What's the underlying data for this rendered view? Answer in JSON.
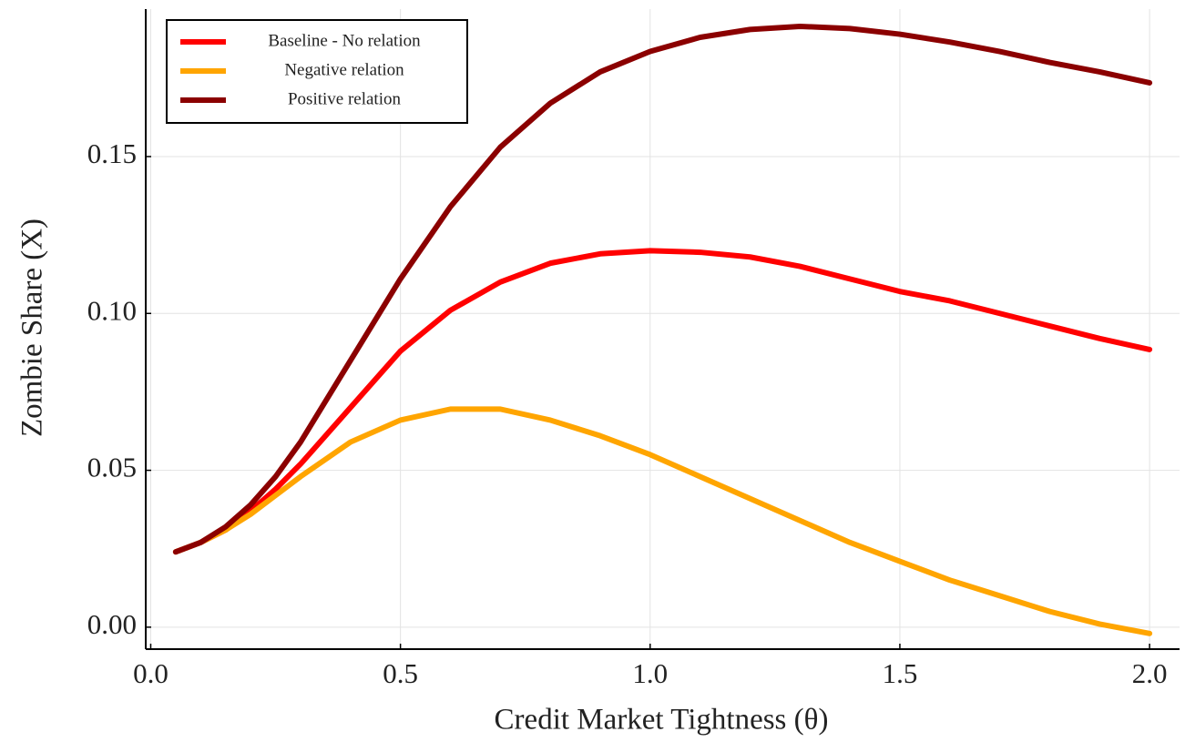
{
  "chart_data": {
    "type": "line",
    "x_label": "Credit Market Tightness (θ)",
    "y_label": "Zombie Share (X)",
    "x": [
      0.05,
      0.1,
      0.15,
      0.2,
      0.25,
      0.3,
      0.4,
      0.5,
      0.6,
      0.7,
      0.8,
      0.9,
      1.0,
      1.1,
      1.2,
      1.3,
      1.4,
      1.5,
      1.6,
      1.7,
      1.8,
      1.9,
      2.0
    ],
    "series": [
      {
        "name": "Baseline - No relation",
        "color": "#ff0000",
        "values": [
          0.024,
          0.027,
          0.031,
          0.037,
          0.044,
          0.052,
          0.07,
          0.088,
          0.101,
          0.11,
          0.116,
          0.119,
          0.12,
          0.1195,
          0.118,
          0.115,
          0.111,
          0.107,
          0.104,
          0.1,
          0.096,
          0.092,
          0.0885
        ]
      },
      {
        "name": "Negative relation",
        "color": "#ffa500",
        "values": [
          0.024,
          0.027,
          0.031,
          0.036,
          0.042,
          0.048,
          0.059,
          0.066,
          0.0695,
          0.0695,
          0.066,
          0.061,
          0.055,
          0.048,
          0.041,
          0.034,
          0.027,
          0.021,
          0.015,
          0.01,
          0.005,
          0.001,
          -0.002
        ]
      },
      {
        "name": "Positive relation",
        "color": "#8b0000",
        "values": [
          0.024,
          0.027,
          0.032,
          0.039,
          0.048,
          0.059,
          0.085,
          0.111,
          0.134,
          0.153,
          0.167,
          0.177,
          0.1835,
          0.188,
          0.1905,
          0.1915,
          0.1908,
          0.189,
          0.1865,
          0.1835,
          0.18,
          0.177,
          0.1735
        ]
      }
    ],
    "xlim": [
      -0.01,
      2.06
    ],
    "ylim": [
      -0.007,
      0.197
    ],
    "xticks": [
      {
        "value": 0,
        "label": "0.0"
      },
      {
        "value": 0.5,
        "label": "0.5"
      },
      {
        "value": 1,
        "label": "1.0"
      },
      {
        "value": 1.5,
        "label": "1.5"
      },
      {
        "value": 2,
        "label": "2.0"
      }
    ],
    "yticks": [
      {
        "value": 0,
        "label": "0.00"
      },
      {
        "value": 0.05,
        "label": "0.05"
      },
      {
        "value": 0.1,
        "label": "0.10"
      },
      {
        "value": 0.15,
        "label": "0.15"
      }
    ],
    "grid": true,
    "legend": "upper-left"
  }
}
